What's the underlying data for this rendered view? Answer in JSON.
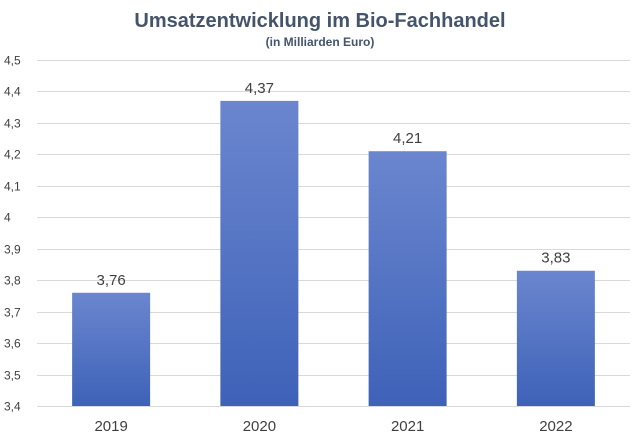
{
  "chart_data": {
    "type": "bar",
    "title": "Umsatzentwicklung im Bio-Fachhandel",
    "subtitle": "(in Milliarden Euro)",
    "xlabel": "",
    "ylabel": "",
    "categories": [
      "2019",
      "2020",
      "2021",
      "2022"
    ],
    "values": [
      3.76,
      4.37,
      4.21,
      3.83
    ],
    "data_labels": [
      "3,76",
      "4,37",
      "4,21",
      "3,83"
    ],
    "ylim": [
      3.4,
      4.5
    ],
    "y_ticks": [
      3.4,
      3.5,
      3.6,
      3.7,
      3.8,
      3.9,
      4.0,
      4.1,
      4.2,
      4.3,
      4.4,
      4.5
    ],
    "y_tick_labels": [
      "3,4",
      "3,5",
      "3,6",
      "3,7",
      "3,8",
      "3,9",
      "4",
      "4,1",
      "4,2",
      "4,3",
      "4,4",
      "4,5"
    ],
    "grid": true,
    "legend": "none",
    "colors": {
      "bar_top": "#6b86cf",
      "bar_bottom": "#3e62b8"
    }
  }
}
